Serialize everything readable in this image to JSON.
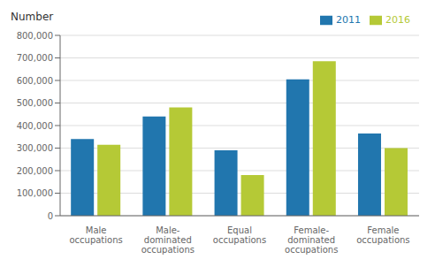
{
  "chart_data": {
    "type": "bar",
    "ylabel": "Number",
    "categories": [
      "Male\noccupations",
      "Male-\ndominated\noccupations",
      "Equal\noccupations",
      "Female-\ndominated\noccupations",
      "Female\noccupations"
    ],
    "series": [
      {
        "name": "2011",
        "color": "#2176ae",
        "values": [
          340000,
          440000,
          290000,
          605000,
          365000
        ]
      },
      {
        "name": "2016",
        "color": "#b5c936",
        "values": [
          315000,
          480000,
          180000,
          685000,
          300000
        ]
      }
    ],
    "ylim": [
      0,
      800000
    ],
    "yticks": [
      0,
      {
        "value": 100000,
        "label": "100,000"
      },
      {
        "value": 200000,
        "label": "200,000"
      },
      {
        "value": 300000,
        "label": "300,000"
      },
      {
        "value": 400000,
        "label": "400,000"
      },
      {
        "value": 500000,
        "label": "500,000"
      },
      {
        "value": 600000,
        "label": "600,000"
      },
      {
        "value": 700000,
        "label": "700,000"
      },
      {
        "value": 800000,
        "label": "800,000"
      }
    ],
    "grid": true,
    "legend": "upper right"
  }
}
